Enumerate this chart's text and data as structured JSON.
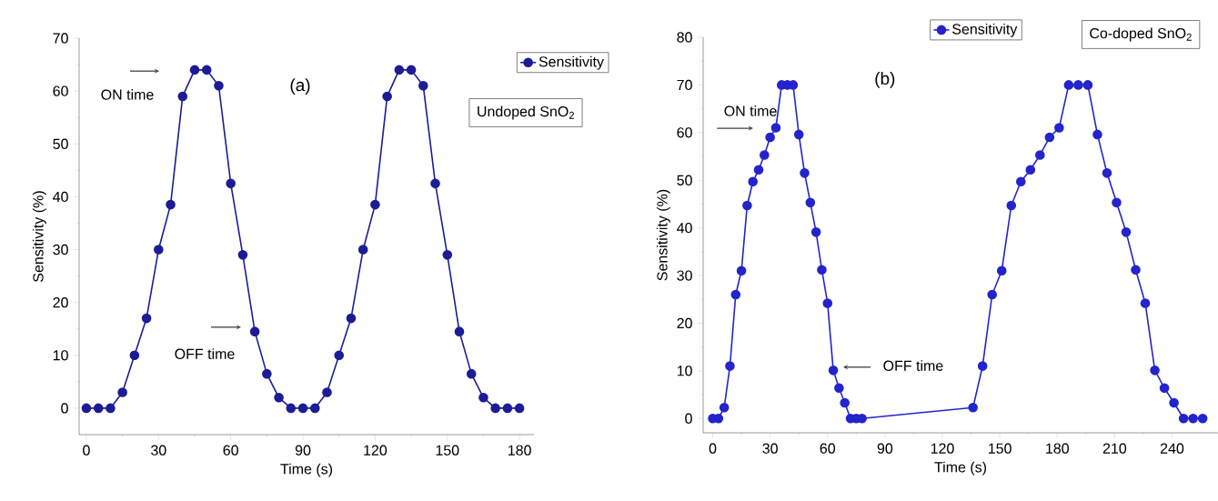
{
  "chart_data": [
    {
      "type": "line",
      "title": "(a)",
      "xlabel": "Time (s)",
      "ylabel": "Sensitivity (%)",
      "x": [
        0,
        5,
        10,
        15,
        20,
        25,
        30,
        35,
        40,
        45,
        50,
        55,
        60,
        65,
        70,
        75,
        80,
        85,
        90,
        95,
        100,
        105,
        110,
        115,
        120,
        125,
        130,
        135,
        140,
        145,
        150,
        155,
        160,
        165,
        170,
        175,
        180
      ],
      "series": [
        {
          "name": "Sensitivity",
          "color": "#1c1c96",
          "values": [
            0,
            0,
            0,
            3,
            10,
            17,
            30,
            38.5,
            59,
            64,
            64,
            61,
            42.5,
            29,
            14.5,
            6.5,
            2,
            0,
            0,
            0,
            3,
            10,
            17,
            30,
            38.5,
            59,
            64,
            64,
            61,
            42.5,
            29,
            14.5,
            6.5,
            2,
            0,
            0,
            0
          ]
        }
      ],
      "xlim": [
        -3,
        186
      ],
      "ylim": [
        -5,
        70
      ],
      "xticks": [
        0,
        30,
        60,
        90,
        120,
        150,
        180
      ],
      "yticks": [
        0,
        10,
        20,
        30,
        40,
        50,
        60,
        70
      ],
      "annotations": [
        "ON time",
        "OFF time",
        "Undoped SnO$_{2}$"
      ],
      "legend": "top right",
      "marker": "circle",
      "line_style": "solid",
      "grid": false
    },
    {
      "type": "line",
      "title": "(b)",
      "xlabel": "Time (s)",
      "ylabel": "Sensitivity (%)",
      "x": [
        0,
        3,
        6,
        9,
        12,
        15,
        18,
        21,
        24,
        27,
        30,
        33,
        36,
        39,
        42,
        45,
        48,
        51,
        54,
        57,
        60,
        63,
        66,
        69,
        72,
        75,
        78,
        136,
        141,
        146,
        151,
        156,
        161,
        166,
        171,
        176,
        181,
        186,
        191,
        196,
        201,
        206,
        211,
        216,
        221,
        226,
        231,
        236,
        241,
        246,
        251,
        256
      ],
      "series": [
        {
          "name": "Sensitivity",
          "color": "#2424cc",
          "values": [
            0,
            0,
            2.3,
            11,
            26,
            31,
            44.7,
            49.7,
            52.2,
            55.3,
            59,
            61,
            70,
            70,
            70,
            59.6,
            51.5,
            45.3,
            39.1,
            31.2,
            24.2,
            10.1,
            6.4,
            3.3,
            0,
            0,
            0,
            2.3,
            11,
            26,
            31,
            44.7,
            49.7,
            52.2,
            55.3,
            59,
            61,
            70,
            70,
            70,
            59.6,
            51.5,
            45.3,
            39.1,
            31.2,
            24.2,
            10.1,
            6.4,
            3.3,
            0,
            0,
            0
          ]
        }
      ],
      "xlim": [
        -5,
        264
      ],
      "ylim": [
        -3,
        80
      ],
      "xticks": [
        0,
        30,
        60,
        90,
        120,
        150,
        180,
        210,
        240
      ],
      "yticks": [
        0,
        10,
        20,
        30,
        40,
        50,
        60,
        70,
        80
      ],
      "annotations": [
        "ON time",
        "OFF time",
        "Co-doped SnO$_{2}$"
      ],
      "legend": "top",
      "marker": "circle",
      "line_style": "solid",
      "grid": false
    }
  ]
}
